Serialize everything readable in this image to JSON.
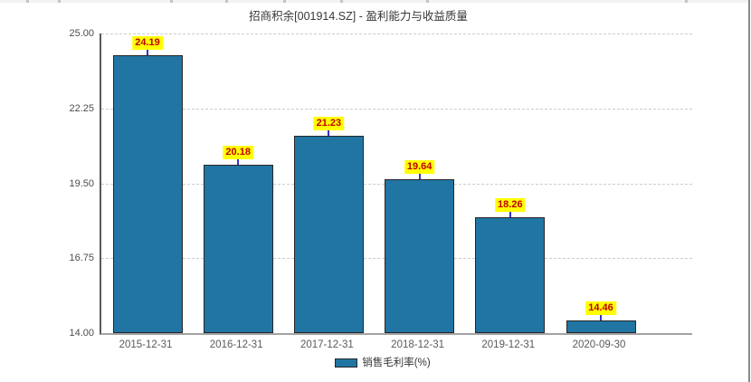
{
  "chart_data": {
    "type": "bar",
    "title": "招商积余[001914.SZ] - 盈利能力与收益质量",
    "categories": [
      "2015-12-31",
      "2016-12-31",
      "2017-12-31",
      "2018-12-31",
      "2019-12-31",
      "2020-09-30"
    ],
    "series": [
      {
        "name": "销售毛利率(%)",
        "values": [
          24.19,
          20.18,
          21.23,
          19.64,
          18.26,
          14.46
        ]
      }
    ],
    "value_labels": [
      "24.19",
      "20.18",
      "21.23",
      "19.64",
      "18.26",
      "14.46"
    ],
    "ylim": [
      14.0,
      25.0
    ],
    "ytick_labels": [
      "25.00",
      "22.25",
      "19.50",
      "16.75",
      "14.00"
    ],
    "grid": "horizontal-dashed",
    "legend_position": "bottom",
    "colors": {
      "bar_fill": "#2175a3",
      "bar_border": "#262626",
      "value_label_bg": "#ffff00",
      "value_label_text": "#c00000",
      "connector_line": "#3333cc",
      "y_axis_line": "#595959",
      "x_axis_line": "#a3a3a3",
      "gridline": "#cccccc"
    }
  }
}
